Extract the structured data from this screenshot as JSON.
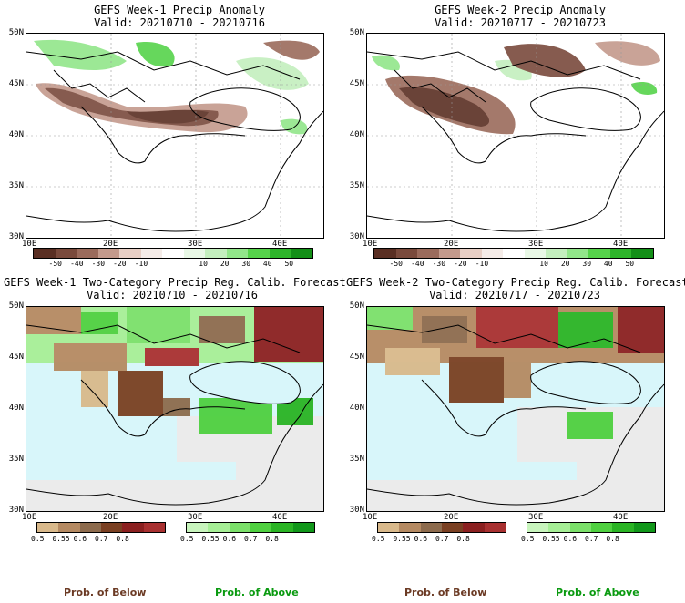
{
  "panels": [
    {
      "title": "GEFS Week-1 Precip Anomaly",
      "valid": "Valid: 20210710 - 20210716"
    },
    {
      "title": "GEFS Week-2 Precip Anomaly",
      "valid": "Valid: 20210717 - 20210723"
    },
    {
      "title": "GEFS Week-1 Two-Category Precip Reg. Calib. Forecast",
      "valid": "Valid: 20210710 - 20210716"
    },
    {
      "title": "GEFS Week-2 Two-Category Precip Reg. Calib. Forecast",
      "valid": "Valid: 20210717 - 20210723"
    }
  ],
  "axes": {
    "lat_labels": [
      "50N",
      "45N",
      "40N",
      "35N",
      "30N"
    ],
    "lon_labels": [
      "10E",
      "20E",
      "30E",
      "40E"
    ]
  },
  "anomaly_colorbar": {
    "labels": [
      "-50",
      "-40",
      "-30",
      "-20",
      "-10",
      "10",
      "20",
      "30",
      "40",
      "50"
    ],
    "colors": [
      "#5a2f23",
      "#7a4a3c",
      "#9b6b5c",
      "#c49a8c",
      "#e8cfc5",
      "#f5ece8",
      "#ffffff",
      "#e9f8e6",
      "#c4efbe",
      "#92e68a",
      "#56d34b",
      "#2db42a",
      "#138f17"
    ]
  },
  "prob_below_colorbar": {
    "labels": [
      "0.5",
      "0.55",
      "0.6",
      "0.7",
      "0.8"
    ],
    "colors": [
      "#d9b98b",
      "#b58a62",
      "#8d6b4d",
      "#7a4022",
      "#8b2020",
      "#a83030"
    ]
  },
  "prob_above_colorbar": {
    "labels": [
      "0.5",
      "0.55",
      "0.6",
      "0.7",
      "0.8"
    ],
    "colors": [
      "#c8f5bd",
      "#a6ef96",
      "#7be06a",
      "#4fd040",
      "#2ab424",
      "#11971a"
    ]
  },
  "footer": {
    "below_label": "Prob. of Below",
    "above_label": "Prob. of Above",
    "below_color": "#6b3a24",
    "above_color": "#0a9a10"
  }
}
